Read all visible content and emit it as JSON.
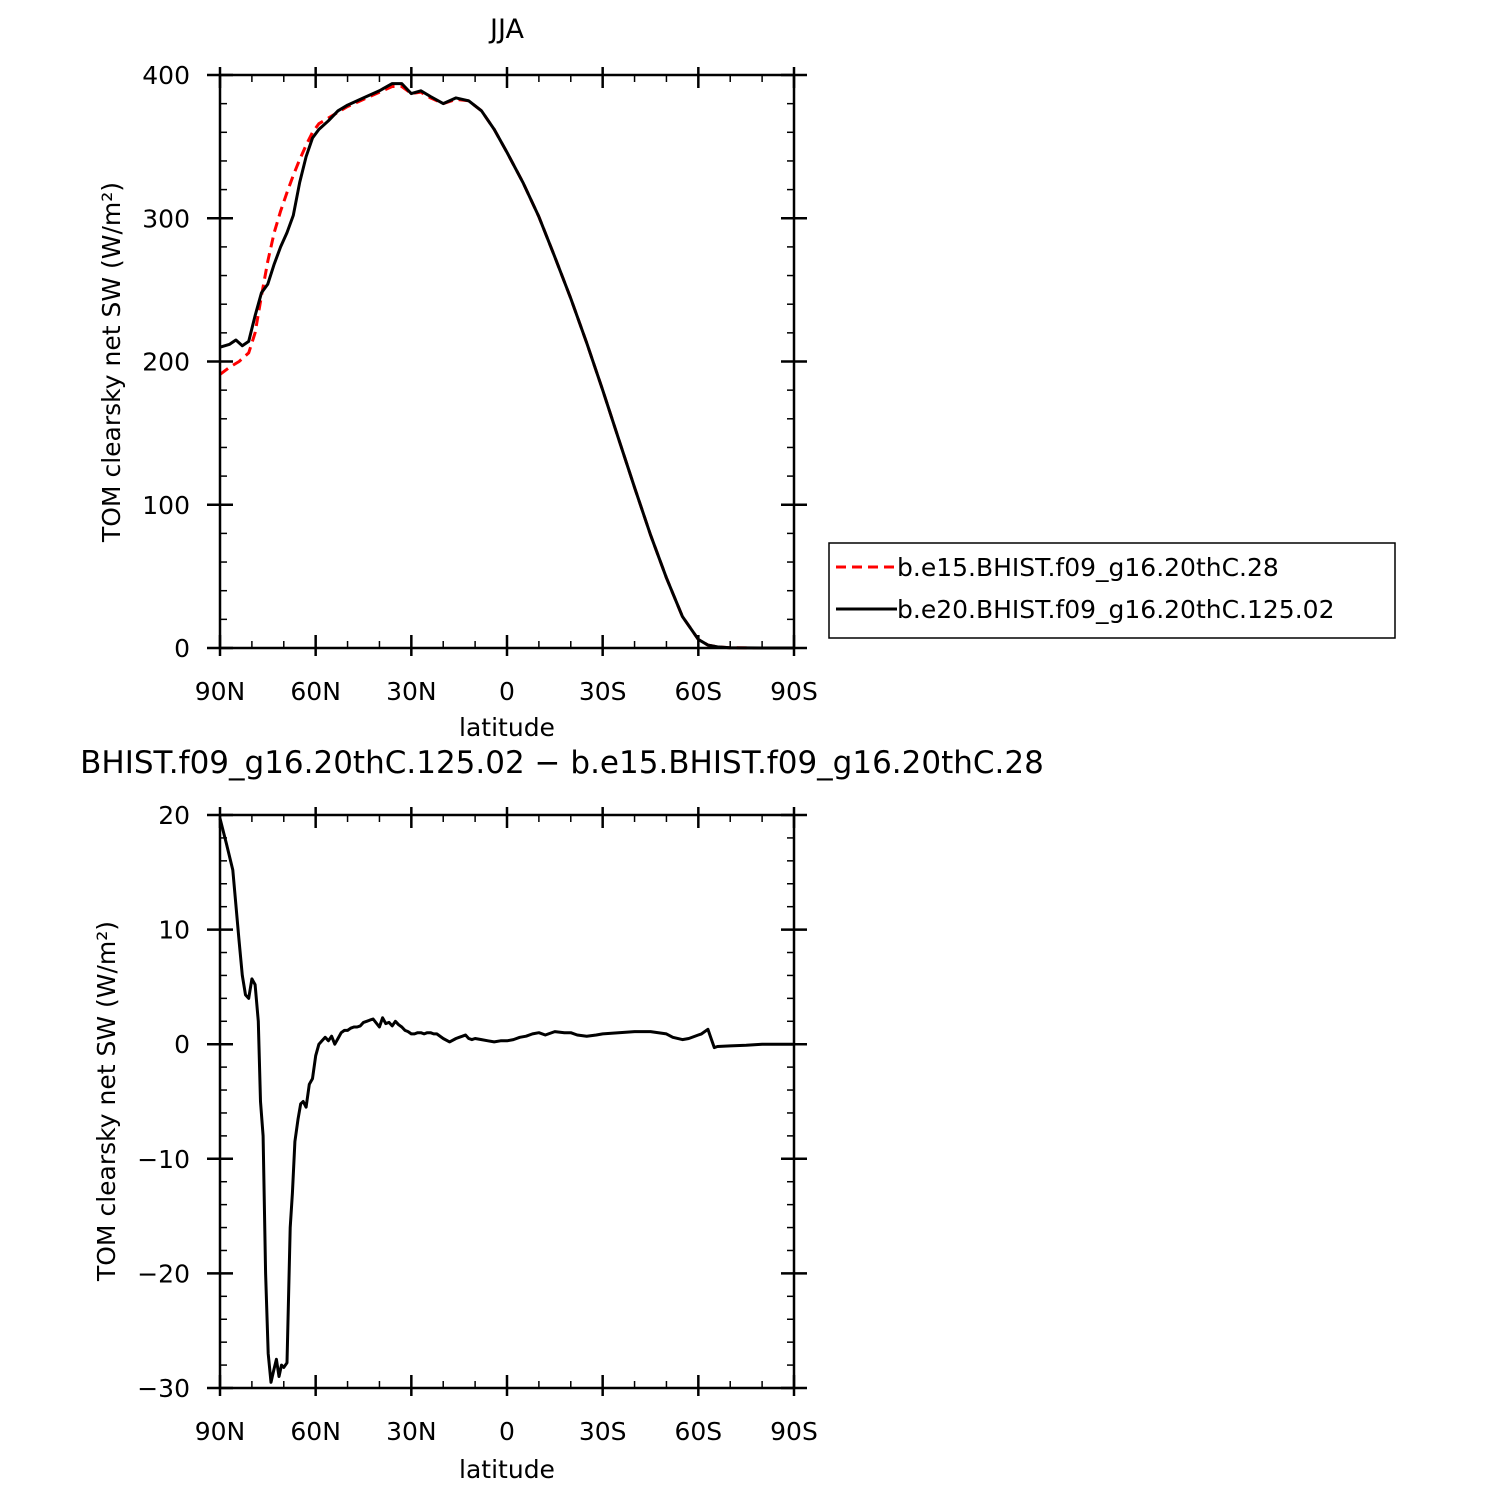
{
  "chart_data": [
    {
      "type": "line",
      "title": "JJA",
      "xlabel": "latitude",
      "ylabel": "TOM clearsky net SW (W/m²)",
      "xlim": [
        90,
        -90
      ],
      "ylim": [
        0,
        400
      ],
      "xticks": [
        90,
        60,
        30,
        0,
        -30,
        -60,
        -90
      ],
      "xtick_labels": [
        "90N",
        "60N",
        "30N",
        "0",
        "30S",
        "60S",
        "90S"
      ],
      "yticks": [
        0,
        100,
        200,
        300,
        400
      ],
      "ytick_labels": [
        "0",
        "100",
        "200",
        "300",
        "400"
      ],
      "legend_placement": "right",
      "series": [
        {
          "name": "b.e15.BHIST.f09_g16.20thC.28",
          "color": "#ff0000",
          "dash": "dashed",
          "x": [
            90,
            87,
            84,
            81,
            79,
            77,
            75,
            73,
            71,
            69,
            67,
            65,
            63,
            61,
            59,
            56,
            53,
            50,
            45,
            40,
            36,
            33,
            30,
            27,
            24,
            20,
            16,
            12,
            8,
            4,
            0,
            -5,
            -10,
            -15,
            -20,
            -25,
            -30,
            -35,
            -40,
            -45,
            -50,
            -55,
            -60,
            -63,
            -66,
            -70,
            -75,
            -80,
            -85,
            -90
          ],
          "y": [
            191,
            196,
            200,
            206,
            220,
            246,
            270,
            290,
            305,
            318,
            330,
            341,
            351,
            360,
            366,
            370,
            374,
            378,
            383,
            388,
            392,
            392,
            387,
            388,
            384,
            380,
            383,
            382,
            375,
            362,
            346,
            325,
            301,
            273,
            244,
            213,
            180,
            146,
            112,
            79,
            49,
            22,
            6,
            2,
            0.8,
            0.2,
            0.05,
            0,
            0,
            0
          ]
        },
        {
          "name": "b.e20.BHIST.f09_g16.20thC.125.02",
          "color": "#000000",
          "dash": "solid",
          "x": [
            90,
            87,
            85,
            83,
            81,
            79,
            77,
            75,
            73,
            71,
            69,
            67,
            65,
            63,
            61,
            59,
            56,
            53,
            50,
            45,
            40,
            36,
            33,
            30,
            27,
            24,
            20,
            16,
            12,
            8,
            4,
            0,
            -5,
            -10,
            -15,
            -20,
            -25,
            -30,
            -35,
            -40,
            -45,
            -50,
            -55,
            -60,
            -63,
            -66,
            -70,
            -75,
            -80,
            -85,
            -90
          ],
          "y": [
            210,
            212,
            215,
            211,
            214,
            232,
            248,
            254,
            268,
            280,
            290,
            302,
            325,
            343,
            356,
            362,
            368,
            375,
            379,
            384,
            389,
            394,
            394,
            387,
            389,
            385,
            380,
            384,
            382,
            375,
            362,
            346,
            325,
            301,
            273,
            244,
            213,
            180,
            146,
            112,
            79,
            49,
            22,
            6,
            2,
            0.8,
            0.2,
            0.05,
            0,
            0,
            0
          ]
        }
      ]
    },
    {
      "type": "line",
      "title": "BHIST.f09_g16.20thC.125.02 − b.e15.BHIST.f09_g16.20thC.28",
      "xlabel": "latitude",
      "ylabel": "TOM clearsky net SW (W/m²)",
      "xlim": [
        90,
        -90
      ],
      "ylim": [
        -30,
        20
      ],
      "xticks": [
        90,
        60,
        30,
        0,
        -30,
        -60,
        -90
      ],
      "xtick_labels": [
        "90N",
        "60N",
        "30N",
        "0",
        "30S",
        "60S",
        "90S"
      ],
      "yticks": [
        -30,
        -20,
        -10,
        0,
        10,
        20
      ],
      "ytick_labels": [
        "−30",
        "−20",
        "−10",
        "0",
        "10",
        "20"
      ],
      "series": [
        {
          "color": "#000000",
          "dash": "solid",
          "x": [
            90,
            88,
            86,
            84,
            83,
            82,
            81,
            80,
            79,
            78,
            77.3,
            76.5,
            75.7,
            74.9,
            74,
            73.2,
            72.3,
            71.5,
            70.7,
            70,
            69,
            68,
            67.3,
            66.5,
            65.5,
            64.7,
            63.9,
            63,
            62,
            61,
            60,
            59,
            58,
            57,
            56,
            55,
            54,
            53,
            52,
            51,
            50,
            49,
            48,
            47,
            46,
            45,
            44,
            43,
            42,
            40,
            39,
            38,
            37,
            36,
            35,
            34,
            33,
            32,
            31,
            30,
            29,
            28,
            27,
            26,
            25,
            24,
            23,
            22,
            20,
            18,
            16,
            15,
            14,
            13,
            12,
            11,
            10,
            8,
            6,
            4,
            2,
            0,
            -2,
            -4,
            -6,
            -8,
            -10,
            -12,
            -15,
            -18,
            -20,
            -22,
            -25,
            -28,
            -30,
            -35,
            -40,
            -45,
            -50,
            -52,
            -55,
            -57,
            -60,
            -61,
            -63,
            -64,
            -65,
            -66,
            -70,
            -75,
            -80,
            -85,
            -90
          ],
          "y": [
            19.7,
            17.5,
            15.2,
            9,
            6,
            4.3,
            4,
            5.7,
            5.2,
            2,
            -5,
            -8,
            -20,
            -27,
            -29.5,
            -28.5,
            -27.5,
            -29,
            -28,
            -28.2,
            -27.8,
            -16,
            -13,
            -8.5,
            -6.5,
            -5.2,
            -5,
            -5.5,
            -3.5,
            -3,
            -1,
            0,
            0.3,
            0.6,
            0.3,
            0.7,
            0,
            0.5,
            1,
            1.2,
            1.2,
            1.4,
            1.5,
            1.5,
            1.6,
            1.9,
            2,
            2.1,
            2.2,
            1.5,
            2.3,
            1.8,
            1.9,
            1.6,
            2,
            1.7,
            1.5,
            1.2,
            1.1,
            0.9,
            0.9,
            1,
            1,
            0.9,
            1,
            1,
            0.9,
            0.9,
            0.5,
            0.2,
            0.5,
            0.6,
            0.7,
            0.8,
            0.5,
            0.4,
            0.5,
            0.4,
            0.3,
            0.2,
            0.3,
            0.3,
            0.4,
            0.6,
            0.7,
            0.9,
            1,
            0.8,
            1.1,
            1.0,
            1.0,
            0.8,
            0.7,
            0.8,
            0.9,
            1.0,
            1.1,
            1.1,
            0.9,
            0.6,
            0.4,
            0.5,
            0.8,
            0.9,
            1.3,
            0.5,
            -0.3,
            -0.2,
            -0.15,
            -0.1,
            0,
            0,
            0
          ]
        }
      ]
    }
  ]
}
